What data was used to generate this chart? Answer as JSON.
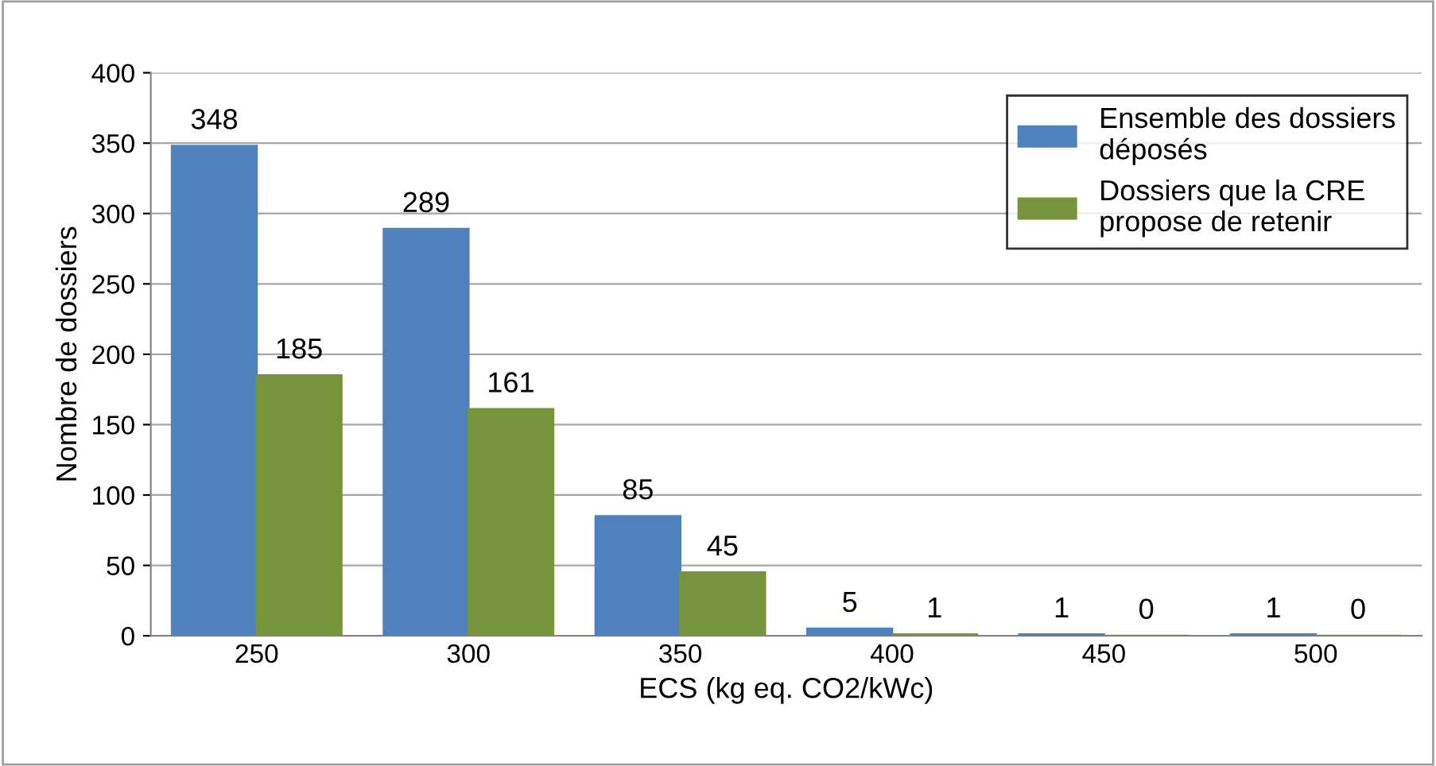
{
  "chart_data": {
    "type": "bar",
    "xlabel": "ECS (kg eq. CO2/kWc)",
    "ylabel": "Nombre de dossiers",
    "categories": [
      "250",
      "300",
      "350",
      "400",
      "450",
      "500"
    ],
    "series": [
      {
        "name": "Ensemble des dossiers\ndéposés",
        "color": "#4f81bd",
        "values": [
          348,
          289,
          85,
          5,
          1,
          1
        ]
      },
      {
        "name": "Dossiers que la CRE\npropose de retenir",
        "color": "#77933c",
        "values": [
          185,
          161,
          45,
          1,
          0,
          0
        ]
      }
    ],
    "ylim": [
      0,
      400
    ],
    "yticks": [
      0,
      50,
      100,
      150,
      200,
      250,
      300,
      350,
      400
    ],
    "grid": "y",
    "legend": "top right",
    "data_labels": true
  }
}
